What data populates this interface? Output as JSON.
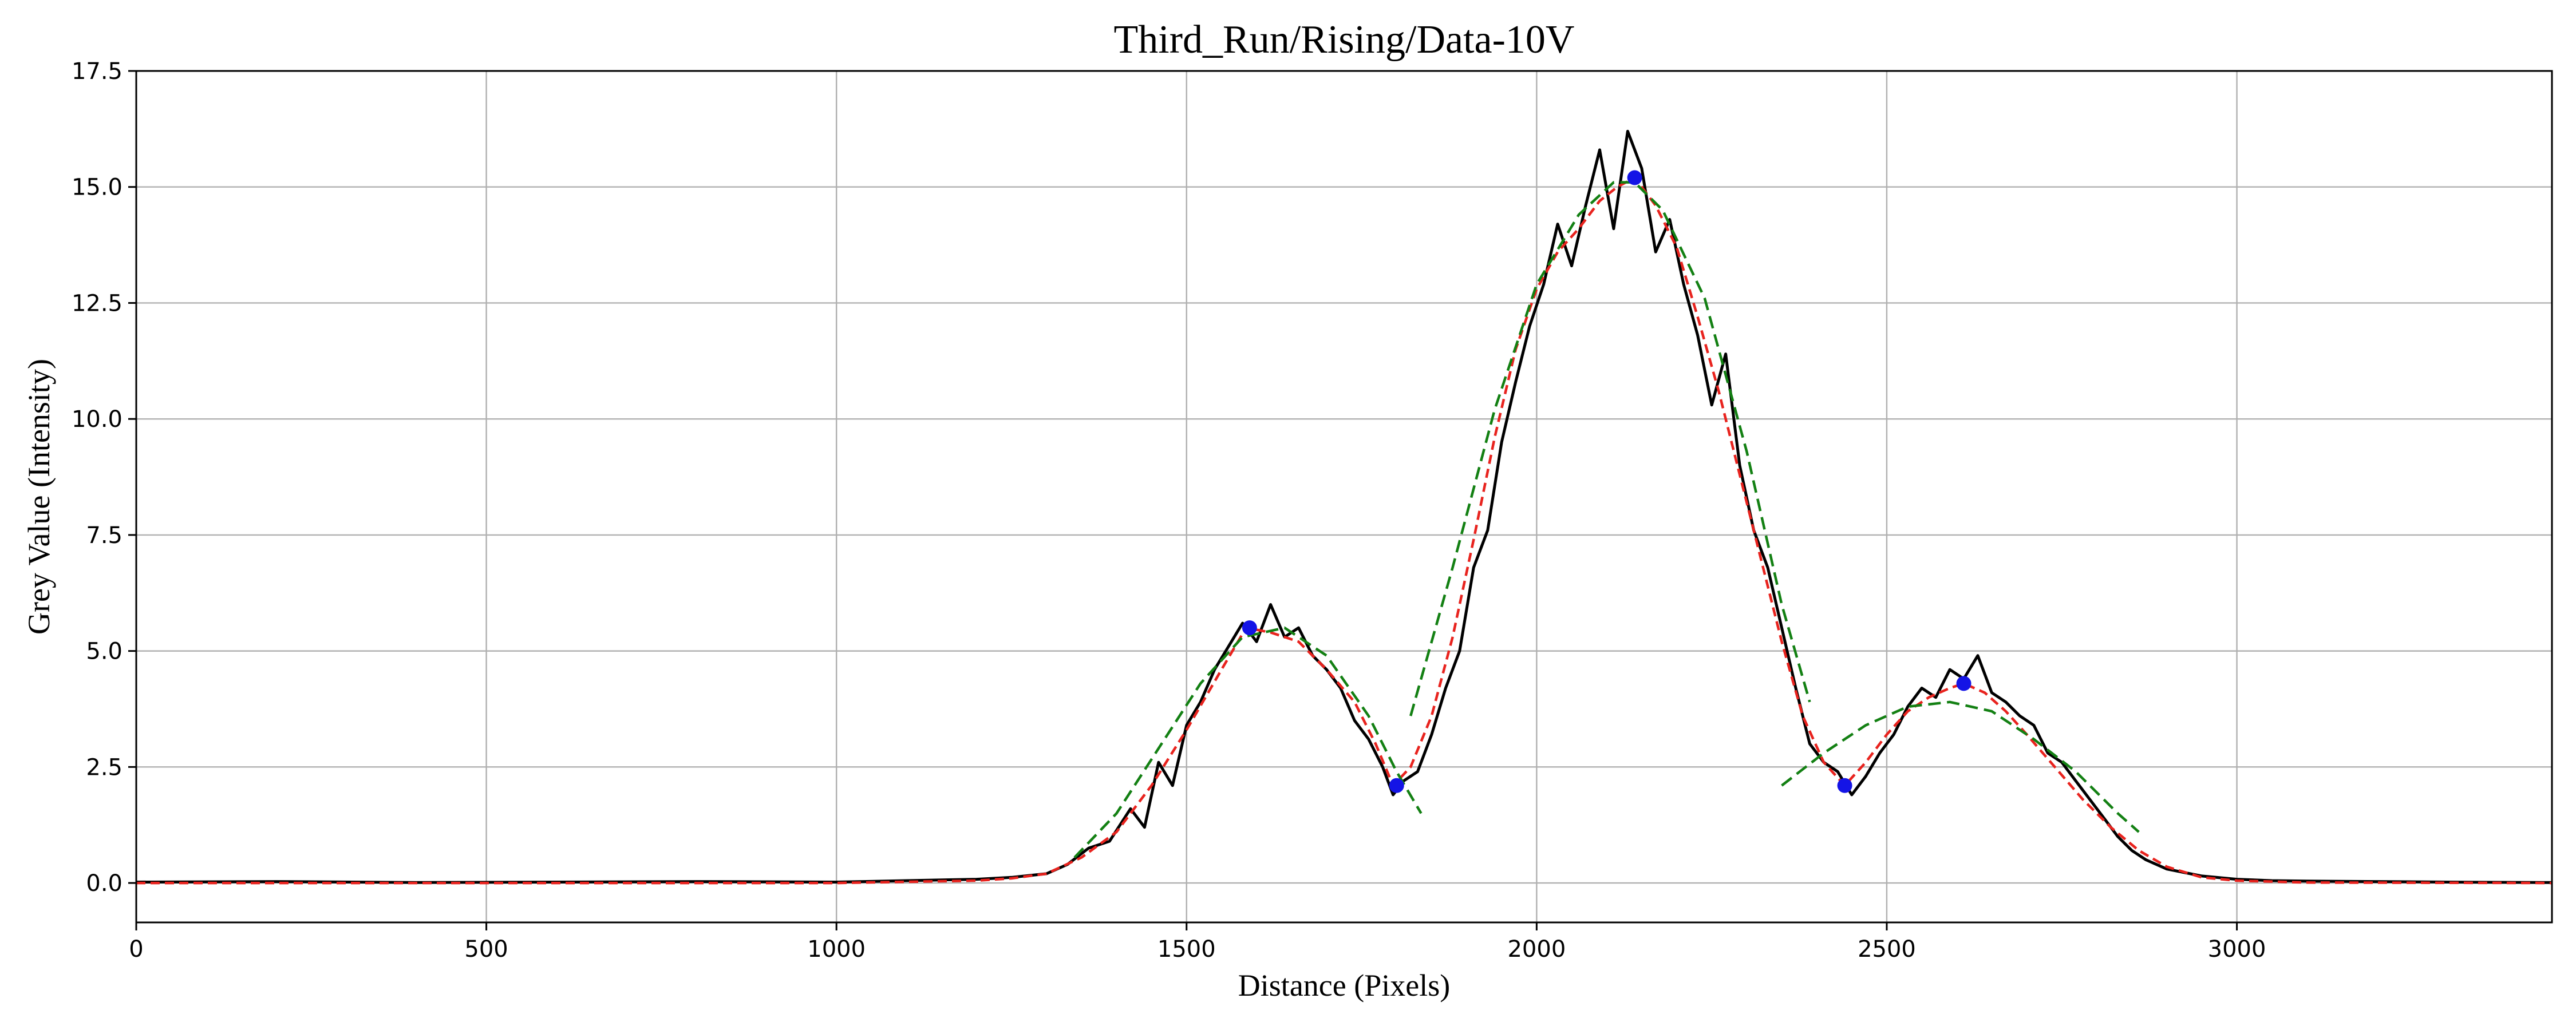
{
  "chart_data": {
    "type": "line",
    "title": "Third_Run/Rising/Data-10V",
    "xlabel": "Distance (Pixels)",
    "ylabel": "Grey Value (Intensity)",
    "xlim": [
      0,
      3450
    ],
    "ylim": [
      -0.85,
      17.5
    ],
    "grid": true,
    "xticks": [
      0,
      500,
      1000,
      1500,
      2000,
      2500,
      3000
    ],
    "xtick_labels": [
      "0",
      "500",
      "1000",
      "1500",
      "2000",
      "2500",
      "3000"
    ],
    "yticks": [
      0.0,
      2.5,
      5.0,
      7.5,
      10.0,
      12.5,
      15.0,
      17.5
    ],
    "ytick_labels": [
      "0.0",
      "2.5",
      "5.0",
      "7.5",
      "10.0",
      "12.5",
      "15.0",
      "17.5"
    ],
    "series": [
      {
        "kind": "raw",
        "color": "#000000",
        "style": "solid",
        "x": [
          0,
          200,
          400,
          600,
          800,
          1000,
          1100,
          1200,
          1250,
          1300,
          1330,
          1360,
          1390,
          1420,
          1440,
          1460,
          1480,
          1500,
          1520,
          1540,
          1560,
          1580,
          1600,
          1620,
          1640,
          1660,
          1680,
          1700,
          1720,
          1740,
          1760,
          1780,
          1795,
          1810,
          1830,
          1850,
          1870,
          1890,
          1910,
          1930,
          1950,
          1970,
          1990,
          2010,
          2030,
          2050,
          2070,
          2090,
          2110,
          2130,
          2150,
          2170,
          2190,
          2210,
          2230,
          2250,
          2270,
          2290,
          2310,
          2330,
          2350,
          2370,
          2390,
          2410,
          2430,
          2450,
          2470,
          2490,
          2510,
          2530,
          2550,
          2570,
          2590,
          2610,
          2630,
          2650,
          2670,
          2690,
          2710,
          2730,
          2750,
          2770,
          2790,
          2810,
          2830,
          2850,
          2870,
          2900,
          2950,
          3000,
          3050,
          3100,
          3200,
          3300,
          3450
        ],
        "y": [
          0.02,
          0.03,
          0.01,
          0.02,
          0.03,
          0.02,
          0.05,
          0.08,
          0.12,
          0.2,
          0.4,
          0.75,
          0.9,
          1.6,
          1.2,
          2.6,
          2.1,
          3.4,
          3.9,
          4.6,
          5.1,
          5.6,
          5.2,
          6.0,
          5.3,
          5.5,
          4.9,
          4.6,
          4.2,
          3.5,
          3.1,
          2.5,
          1.9,
          2.2,
          2.4,
          3.2,
          4.2,
          5.0,
          6.8,
          7.6,
          9.5,
          10.8,
          12.0,
          12.9,
          14.2,
          13.3,
          14.6,
          15.8,
          14.1,
          16.2,
          15.4,
          13.6,
          14.3,
          12.9,
          11.8,
          10.3,
          11.4,
          9.0,
          7.6,
          6.8,
          5.5,
          4.2,
          3.0,
          2.6,
          2.4,
          1.9,
          2.3,
          2.8,
          3.2,
          3.8,
          4.2,
          4.0,
          4.6,
          4.4,
          4.9,
          4.1,
          3.9,
          3.6,
          3.4,
          2.8,
          2.6,
          2.2,
          1.8,
          1.4,
          1.0,
          0.7,
          0.5,
          0.3,
          0.15,
          0.08,
          0.05,
          0.04,
          0.03,
          0.02,
          0.01
        ]
      },
      {
        "kind": "smoothed",
        "color": "#e8231e",
        "style": "dashed",
        "x": [
          0,
          1000,
          1200,
          1250,
          1300,
          1350,
          1400,
          1450,
          1500,
          1550,
          1585,
          1620,
          1660,
          1700,
          1740,
          1770,
          1795,
          1820,
          1850,
          1880,
          1910,
          1940,
          1970,
          2000,
          2030,
          2060,
          2090,
          2115,
          2140,
          2170,
          2200,
          2230,
          2260,
          2290,
          2320,
          2350,
          2380,
          2410,
          2440,
          2470,
          2500,
          2530,
          2560,
          2590,
          2610,
          2640,
          2670,
          2700,
          2740,
          2780,
          2820,
          2860,
          2900,
          2950,
          3000,
          3100,
          3450
        ],
        "y": [
          0.0,
          0.0,
          0.05,
          0.1,
          0.2,
          0.55,
          1.1,
          2.1,
          3.3,
          4.6,
          5.5,
          5.4,
          5.2,
          4.6,
          3.9,
          3.0,
          2.1,
          2.5,
          3.6,
          5.3,
          7.4,
          9.6,
          11.5,
          12.8,
          13.6,
          14.1,
          14.7,
          15.0,
          15.2,
          14.6,
          13.7,
          12.2,
          10.6,
          8.8,
          7.0,
          5.2,
          3.6,
          2.6,
          2.1,
          2.6,
          3.2,
          3.7,
          4.0,
          4.2,
          4.3,
          4.1,
          3.7,
          3.2,
          2.5,
          1.8,
          1.2,
          0.7,
          0.35,
          0.12,
          0.05,
          0.01,
          0.0
        ]
      },
      {
        "kind": "fit",
        "color": "#138013",
        "style": "dashed",
        "x": [
          1340,
          1400,
          1460,
          1520,
          1580,
          1640,
          1700,
          1760,
          1800,
          1835
        ],
        "y": [
          0.55,
          1.5,
          2.9,
          4.3,
          5.3,
          5.5,
          4.9,
          3.6,
          2.4,
          1.5
        ]
      },
      {
        "kind": "fit",
        "color": "#138013",
        "style": "dashed",
        "x": [
          1820,
          1880,
          1940,
          2000,
          2060,
          2110,
          2140,
          2180,
          2240,
          2300,
          2350,
          2390
        ],
        "y": [
          3.6,
          6.8,
          10.2,
          12.9,
          14.4,
          15.1,
          15.1,
          14.5,
          12.6,
          9.3,
          6.0,
          3.9
        ]
      },
      {
        "kind": "fit",
        "color": "#138013",
        "style": "dashed",
        "x": [
          2350,
          2410,
          2470,
          2530,
          2590,
          2650,
          2710,
          2770,
          2830,
          2860
        ],
        "y": [
          2.1,
          2.8,
          3.4,
          3.8,
          3.9,
          3.7,
          3.1,
          2.4,
          1.5,
          1.1
        ]
      }
    ],
    "markers": {
      "color": "#1414e6",
      "x": [
        1590,
        1800,
        2140,
        2440,
        2610
      ],
      "y": [
        5.5,
        2.1,
        15.2,
        2.1,
        4.3
      ]
    }
  }
}
